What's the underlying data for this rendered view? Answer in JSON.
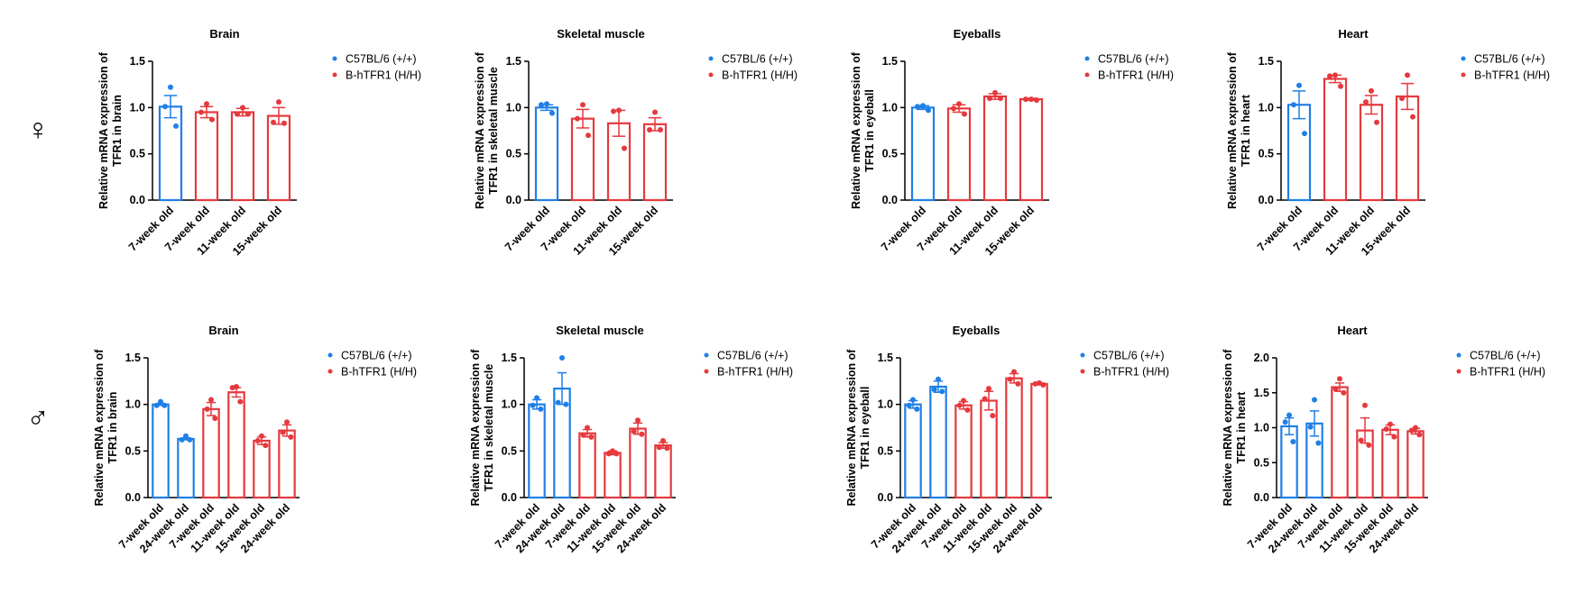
{
  "row_labels": [
    "♀",
    "♂"
  ],
  "chart_data": [
    {
      "type": "bar",
      "title": "Brain",
      "ylabel": [
        "Relative mRNA expression of",
        "TFR1 in brain"
      ],
      "categories": [
        "7-week old",
        "7-week old",
        "11-week old",
        "15-week old"
      ],
      "ylim": [
        0,
        1.5
      ],
      "yticks": [
        {
          "value": 0,
          "label": "0.0"
        },
        0.5,
        {
          "value": 1,
          "label": "1.0"
        },
        1.5
      ],
      "series": [
        {
          "name": "C57BL/6 (+/+)",
          "color": "#1f7fe6",
          "values": [
            1.01,
            null,
            null,
            null
          ],
          "errors": [
            0.12,
            null,
            null,
            null
          ],
          "points": [
            [
              1.22,
              1.01,
              0.8
            ],
            null,
            null,
            null
          ]
        },
        {
          "name": "B-hTFR1 (H/H)",
          "color": "#e5393e",
          "values": [
            null,
            0.95,
            0.95,
            0.91
          ],
          "errors": [
            null,
            0.06,
            0.04,
            0.09
          ],
          "points": [
            null,
            [
              1.04,
              0.95,
              0.87
            ],
            [
              1.0,
              0.93,
              0.93
            ],
            [
              1.06,
              0.84,
              0.83
            ]
          ]
        }
      ]
    },
    {
      "type": "bar",
      "title": "Skeletal muscle",
      "ylabel": [
        "Relative mRNA expression of",
        "TFR1 in skeletal muscle"
      ],
      "categories": [
        "7-week old",
        "7-week old",
        "11-week old",
        "15-week old"
      ],
      "ylim": [
        0,
        1.5
      ],
      "yticks": [
        {
          "value": 0,
          "label": "0.0"
        },
        0.5,
        {
          "value": 1,
          "label": "1.0"
        },
        1.5
      ],
      "series": [
        {
          "name": "C57BL/6 (+/+)",
          "color": "#1f7fe6",
          "values": [
            1.0,
            null,
            null,
            null
          ],
          "errors": [
            0.03,
            null,
            null,
            null
          ],
          "points": [
            [
              1.04,
              1.03,
              0.94
            ],
            null,
            null,
            null
          ]
        },
        {
          "name": "B-hTFR1 (H/H)",
          "color": "#e5393e",
          "values": [
            null,
            0.88,
            0.83,
            0.82
          ],
          "errors": [
            null,
            0.1,
            0.14,
            0.07
          ],
          "points": [
            null,
            [
              1.03,
              0.88,
              0.7
            ],
            [
              0.97,
              0.96,
              0.56
            ],
            [
              0.95,
              0.76,
              0.76
            ]
          ]
        }
      ]
    },
    {
      "type": "bar",
      "title": "Eyeballs",
      "ylabel": [
        "Relative mRNA expression of",
        "TFR1 in eyeball"
      ],
      "categories": [
        "7-week old",
        "7-week old",
        "11-week old",
        "15-week old"
      ],
      "ylim": [
        0,
        1.5
      ],
      "yticks": [
        {
          "value": 0,
          "label": "0.0"
        },
        0.5,
        {
          "value": 1,
          "label": "1.0"
        },
        1.5
      ],
      "series": [
        {
          "name": "C57BL/6 (+/+)",
          "color": "#1f7fe6",
          "values": [
            1.0,
            null,
            null,
            null
          ],
          "errors": [
            0.02,
            null,
            null,
            null
          ],
          "points": [
            [
              1.02,
              1.01,
              0.97
            ],
            null,
            null,
            null
          ]
        },
        {
          "name": "B-hTFR1 (H/H)",
          "color": "#e5393e",
          "values": [
            null,
            0.99,
            1.12,
            1.09
          ],
          "errors": [
            null,
            0.04,
            0.03,
            0.01
          ],
          "points": [
            null,
            [
              1.04,
              0.99,
              0.93
            ],
            [
              1.16,
              1.1,
              1.1
            ],
            [
              1.09,
              1.09,
              1.08
            ]
          ]
        }
      ]
    },
    {
      "type": "bar",
      "title": "Heart",
      "ylabel": [
        "Relative mRNA expression of",
        "TFR1 in heart"
      ],
      "categories": [
        "7-week old",
        "7-week old",
        "11-week old",
        "15-week old"
      ],
      "ylim": [
        0,
        1.5
      ],
      "yticks": [
        {
          "value": 0,
          "label": "0.0"
        },
        0.5,
        {
          "value": 1,
          "label": "1.0"
        },
        1.5
      ],
      "series": [
        {
          "name": "C57BL/6 (+/+)",
          "color": "#1f7fe6",
          "values": [
            1.03,
            null,
            null,
            null
          ],
          "errors": [
            0.15,
            null,
            null,
            null
          ],
          "points": [
            [
              1.24,
              1.03,
              0.72
            ],
            null,
            null,
            null
          ]
        },
        {
          "name": "B-hTFR1 (H/H)",
          "color": "#e5393e",
          "values": [
            null,
            1.31,
            1.03,
            1.12
          ],
          "errors": [
            null,
            0.04,
            0.1,
            0.14
          ],
          "points": [
            null,
            [
              1.35,
              1.34,
              1.23
            ],
            [
              1.18,
              1.06,
              0.84
            ],
            [
              1.35,
              1.1,
              0.9
            ]
          ]
        }
      ]
    },
    {
      "type": "bar",
      "title": "Brain",
      "ylabel": [
        "Relative mRNA expression of",
        "TFR1 in brain"
      ],
      "categories": [
        "7-week old",
        "24-week old",
        "7-week old",
        "11-week old",
        "15-week old",
        "24-week old"
      ],
      "ylim": [
        0,
        1.5
      ],
      "yticks": [
        {
          "value": 0,
          "label": "0.0"
        },
        0.5,
        {
          "value": 1,
          "label": "1.0"
        },
        1.5
      ],
      "series": [
        {
          "name": "C57BL/6 (+/+)",
          "color": "#1f7fe6",
          "values": [
            1.0,
            0.63,
            null,
            null,
            null,
            null
          ],
          "errors": [
            0.01,
            0.01,
            null,
            null,
            null,
            null
          ],
          "points": [
            [
              1.03,
              0.99,
              0.99
            ],
            [
              0.66,
              0.62,
              0.62
            ],
            null,
            null,
            null,
            null
          ]
        },
        {
          "name": "B-hTFR1 (H/H)",
          "color": "#e5393e",
          "values": [
            null,
            null,
            0.95,
            1.13,
            0.61,
            0.72
          ],
          "errors": [
            null,
            null,
            0.07,
            0.05,
            0.04,
            0.06
          ],
          "points": [
            null,
            null,
            [
              1.05,
              0.95,
              0.85
            ],
            [
              1.19,
              1.18,
              1.03
            ],
            [
              0.66,
              0.61,
              0.56
            ],
            [
              0.81,
              0.7,
              0.65
            ]
          ]
        }
      ]
    },
    {
      "type": "bar",
      "title": "Skeletal muscle",
      "ylabel": [
        "Relative mRNA expression of",
        "TFR1 in skeletal muscle"
      ],
      "categories": [
        "7-week old",
        "24-week old",
        "7-week old",
        "11-week old",
        "15-week old",
        "24-week old"
      ],
      "ylim": [
        0,
        1.5
      ],
      "yticks": [
        {
          "value": 0,
          "label": "0.0"
        },
        0.5,
        {
          "value": 1,
          "label": "1.0"
        },
        1.5
      ],
      "series": [
        {
          "name": "C57BL/6 (+/+)",
          "color": "#1f7fe6",
          "values": [
            1.0,
            1.17,
            null,
            null,
            null,
            null
          ],
          "errors": [
            0.05,
            0.17,
            null,
            null,
            null,
            null
          ],
          "points": [
            [
              1.07,
              0.99,
              0.95
            ],
            [
              1.5,
              1.02,
              1.0
            ],
            null,
            null,
            null,
            null
          ]
        },
        {
          "name": "B-hTFR1 (H/H)",
          "color": "#e5393e",
          "values": [
            null,
            null,
            0.69,
            0.48,
            0.74,
            0.56
          ],
          "errors": [
            null,
            null,
            0.04,
            0.02,
            0.06,
            0.03
          ],
          "points": [
            null,
            null,
            [
              0.75,
              0.67,
              0.65
            ],
            [
              0.5,
              0.47,
              0.47
            ],
            [
              0.83,
              0.71,
              0.68
            ],
            [
              0.61,
              0.54,
              0.53
            ]
          ]
        }
      ]
    },
    {
      "type": "bar",
      "title": "Eyeballs",
      "ylabel": [
        "Relative mRNA expression of",
        "TFR1 in eyeball"
      ],
      "categories": [
        "7-week old",
        "24-week old",
        "7-week old",
        "11-week old",
        "15-week old",
        "24-week old"
      ],
      "ylim": [
        0,
        1.5
      ],
      "yticks": [
        {
          "value": 0,
          "label": "0.0"
        },
        0.5,
        {
          "value": 1,
          "label": "1.0"
        },
        1.5
      ],
      "series": [
        {
          "name": "C57BL/6 (+/+)",
          "color": "#1f7fe6",
          "values": [
            1.0,
            1.19,
            null,
            null,
            null,
            null
          ],
          "errors": [
            0.04,
            0.06,
            null,
            null,
            null,
            null
          ],
          "points": [
            [
              1.05,
              0.99,
              0.95
            ],
            [
              1.27,
              1.16,
              1.14
            ],
            null,
            null,
            null,
            null
          ]
        },
        {
          "name": "B-hTFR1 (H/H)",
          "color": "#e5393e",
          "values": [
            null,
            null,
            0.99,
            1.04,
            1.28,
            1.22
          ],
          "errors": [
            null,
            null,
            0.04,
            0.1,
            0.05,
            0.01
          ],
          "points": [
            null,
            null,
            [
              1.04,
              0.99,
              0.94
            ],
            [
              1.17,
              1.06,
              0.88
            ],
            [
              1.35,
              1.27,
              1.22
            ],
            [
              1.23,
              1.22,
              1.21
            ]
          ]
        }
      ]
    },
    {
      "type": "bar",
      "title": "Heart",
      "ylabel": [
        "Relative mRNA expression of",
        "TFR1 in heart"
      ],
      "categories": [
        "7-week old",
        "24-week old",
        "7-week old",
        "11-week old",
        "15-week old",
        "24-week old"
      ],
      "ylim": [
        0,
        2
      ],
      "yticks": [
        {
          "value": 0,
          "label": "0.0"
        },
        0.5,
        {
          "value": 1,
          "label": "1.0"
        },
        1.5,
        {
          "value": 2,
          "label": "2.0"
        }
      ],
      "series": [
        {
          "name": "C57BL/6 (+/+)",
          "color": "#1f7fe6",
          "values": [
            1.02,
            1.06,
            null,
            null,
            null,
            null
          ],
          "errors": [
            0.12,
            0.18,
            null,
            null,
            null,
            null
          ],
          "points": [
            [
              1.18,
              1.08,
              0.8
            ],
            [
              1.4,
              1.01,
              0.78
            ],
            null,
            null,
            null,
            null
          ]
        },
        {
          "name": "B-hTFR1 (H/H)",
          "color": "#e5393e",
          "values": [
            null,
            null,
            1.58,
            0.96,
            0.97,
            0.95
          ],
          "errors": [
            null,
            null,
            0.06,
            0.18,
            0.07,
            0.04
          ],
          "points": [
            null,
            null,
            [
              1.7,
              1.55,
              1.5
            ],
            [
              1.32,
              0.82,
              0.75
            ],
            [
              1.05,
              0.98,
              0.87
            ],
            [
              1.0,
              0.96,
              0.9
            ]
          ]
        }
      ]
    }
  ]
}
